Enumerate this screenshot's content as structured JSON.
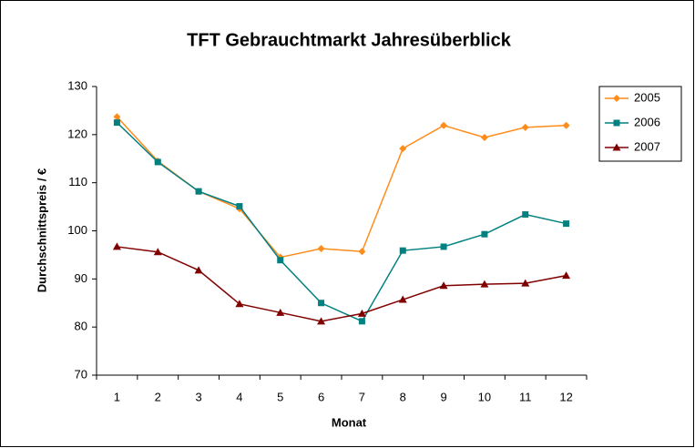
{
  "chart_data": {
    "type": "line",
    "title": "TFT Gebrauchtmarkt Jahresüberblick",
    "x_label": "Monat",
    "y_label": "Durchschnittspreis / €",
    "categories": [
      1,
      2,
      3,
      4,
      5,
      6,
      7,
      8,
      9,
      10,
      11,
      12
    ],
    "series": [
      {
        "name": "2005",
        "color": "#ff8c1a",
        "marker": "diamond",
        "values": [
          123.7,
          114.5,
          108.2,
          104.6,
          94.5,
          96.3,
          95.7,
          117.1,
          121.9,
          119.4,
          121.5,
          121.9
        ]
      },
      {
        "name": "2006",
        "color": "#008080",
        "marker": "square",
        "values": [
          122.5,
          114.3,
          108.2,
          105.1,
          93.9,
          85.0,
          81.2,
          95.9,
          96.7,
          99.3,
          103.4,
          101.5
        ]
      },
      {
        "name": "2007",
        "color": "#800000",
        "marker": "triangle",
        "values": [
          96.7,
          95.6,
          91.8,
          84.8,
          83.0,
          81.2,
          82.8,
          85.7,
          88.6,
          88.9,
          89.1,
          90.7
        ]
      }
    ],
    "ylim": [
      70,
      130
    ],
    "yticks": [
      70,
      80,
      90,
      100,
      110,
      120,
      130
    ],
    "grid": false,
    "legend": "right"
  }
}
